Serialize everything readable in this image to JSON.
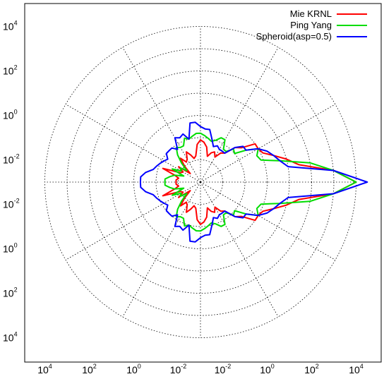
{
  "chart_data": {
    "type": "polar-line",
    "title": "",
    "radial_axis": {
      "scale": "log",
      "min_exponent": -3,
      "max_exponent": 4,
      "rings_per_decade": 1,
      "angular_grid_step_deg": 30
    },
    "tick_labels": {
      "y_top": [
        {
          "base": "10",
          "exp": "4"
        },
        {
          "base": "10",
          "exp": "2"
        },
        {
          "base": "10",
          "exp": "0"
        },
        {
          "base": "10",
          "exp": "-2"
        }
      ],
      "y_bottom": [
        {
          "base": "10",
          "exp": "-2"
        },
        {
          "base": "10",
          "exp": "0"
        },
        {
          "base": "10",
          "exp": "2"
        },
        {
          "base": "10",
          "exp": "4"
        }
      ],
      "x": [
        {
          "base": "10",
          "exp": "4"
        },
        {
          "base": "10",
          "exp": "2"
        },
        {
          "base": "10",
          "exp": "0"
        },
        {
          "base": "10",
          "exp": "-2"
        },
        {
          "base": "10",
          "exp": "-2"
        },
        {
          "base": "10",
          "exp": "0"
        },
        {
          "base": "10",
          "exp": "2"
        },
        {
          "base": "10",
          "exp": "4"
        }
      ]
    },
    "legend": {
      "placement": "top-right"
    },
    "series": [
      {
        "name": "Mie KRNL",
        "color": "#ff0000",
        "points": [
          [
            0,
            4.0
          ],
          [
            5,
            3.0
          ],
          [
            10,
            1.5
          ],
          [
            15,
            1.0
          ],
          [
            20,
            0.5
          ],
          [
            25,
            0.1
          ],
          [
            30,
            0.0
          ],
          [
            35,
            0.0
          ],
          [
            40,
            -0.6
          ],
          [
            45,
            -0.8
          ],
          [
            50,
            -1.3
          ],
          [
            55,
            -1.4
          ],
          [
            60,
            -1.7
          ],
          [
            65,
            -1.5
          ],
          [
            70,
            -1.6
          ],
          [
            75,
            -1.8
          ],
          [
            80,
            -1.4
          ],
          [
            85,
            -1.2
          ],
          [
            90,
            -1.1
          ],
          [
            95,
            -1.3
          ],
          [
            100,
            -1.8
          ],
          [
            105,
            -1.9
          ],
          [
            110,
            -1.7
          ],
          [
            115,
            -1.5
          ],
          [
            120,
            -1.8
          ],
          [
            125,
            -1.9
          ],
          [
            130,
            -1.6
          ],
          [
            135,
            -2.0
          ],
          [
            140,
            -2.4
          ],
          [
            145,
            -1.8
          ],
          [
            150,
            -2.1
          ],
          [
            155,
            -2.0
          ],
          [
            160,
            -1.2
          ],
          [
            165,
            -1.8
          ],
          [
            170,
            -2.0
          ],
          [
            175,
            -1.9
          ],
          [
            180,
            -1.9
          ]
        ]
      },
      {
        "name": "Ping Yang",
        "color": "#00dd00",
        "points": [
          [
            0,
            4.0
          ],
          [
            5,
            3.0
          ],
          [
            10,
            2.0
          ],
          [
            15,
            0.7
          ],
          [
            20,
            -0.1
          ],
          [
            25,
            -0.2
          ],
          [
            30,
            0.0
          ],
          [
            35,
            -0.5
          ],
          [
            40,
            -1.0
          ],
          [
            45,
            -0.9
          ],
          [
            50,
            -1.2
          ],
          [
            55,
            -1.2
          ],
          [
            60,
            -0.8
          ],
          [
            65,
            -0.8
          ],
          [
            70,
            -1.0
          ],
          [
            75,
            -1.1
          ],
          [
            80,
            -1.0
          ],
          [
            85,
            -0.9
          ],
          [
            90,
            -0.8
          ],
          [
            95,
            -0.8
          ],
          [
            100,
            -0.9
          ],
          [
            105,
            -1.0
          ],
          [
            110,
            -0.9
          ],
          [
            115,
            -1.2
          ],
          [
            120,
            -1.2
          ],
          [
            125,
            -1.1
          ],
          [
            130,
            -1.4
          ],
          [
            135,
            -1.8
          ],
          [
            140,
            -2.2
          ],
          [
            145,
            -1.9
          ],
          [
            150,
            -2.0
          ],
          [
            155,
            -1.6
          ],
          [
            160,
            -2.2
          ],
          [
            165,
            -1.8
          ],
          [
            170,
            -1.6
          ],
          [
            175,
            -1.4
          ],
          [
            180,
            -1.4
          ]
        ]
      },
      {
        "name": "Spheroid(asp=0.5)",
        "color": "#0000ff",
        "points": [
          [
            0,
            4.5
          ],
          [
            5,
            3.0
          ],
          [
            10,
            1.0
          ],
          [
            15,
            0.7
          ],
          [
            20,
            0.5
          ],
          [
            25,
            0.3
          ],
          [
            30,
            0.0
          ],
          [
            35,
            -0.5
          ],
          [
            40,
            -0.5
          ],
          [
            45,
            -0.8
          ],
          [
            50,
            -1.3
          ],
          [
            55,
            -1.3
          ],
          [
            60,
            -1.3
          ],
          [
            65,
            -1.2
          ],
          [
            70,
            -1.3
          ],
          [
            75,
            -1.0
          ],
          [
            80,
            -0.6
          ],
          [
            85,
            -0.6
          ],
          [
            90,
            -0.5
          ],
          [
            95,
            -0.3
          ],
          [
            100,
            -0.3
          ],
          [
            105,
            -1.0
          ],
          [
            110,
            -0.7
          ],
          [
            115,
            -0.8
          ],
          [
            120,
            -0.7
          ],
          [
            125,
            -1.2
          ],
          [
            130,
            -1.0
          ],
          [
            135,
            -1.0
          ],
          [
            140,
            -1.0
          ],
          [
            145,
            -1.2
          ],
          [
            150,
            -1.1
          ],
          [
            155,
            -1.0
          ],
          [
            160,
            -0.9
          ],
          [
            165,
            -0.8
          ],
          [
            170,
            -0.5
          ],
          [
            175,
            -0.3
          ],
          [
            180,
            -0.3
          ]
        ]
      }
    ]
  }
}
